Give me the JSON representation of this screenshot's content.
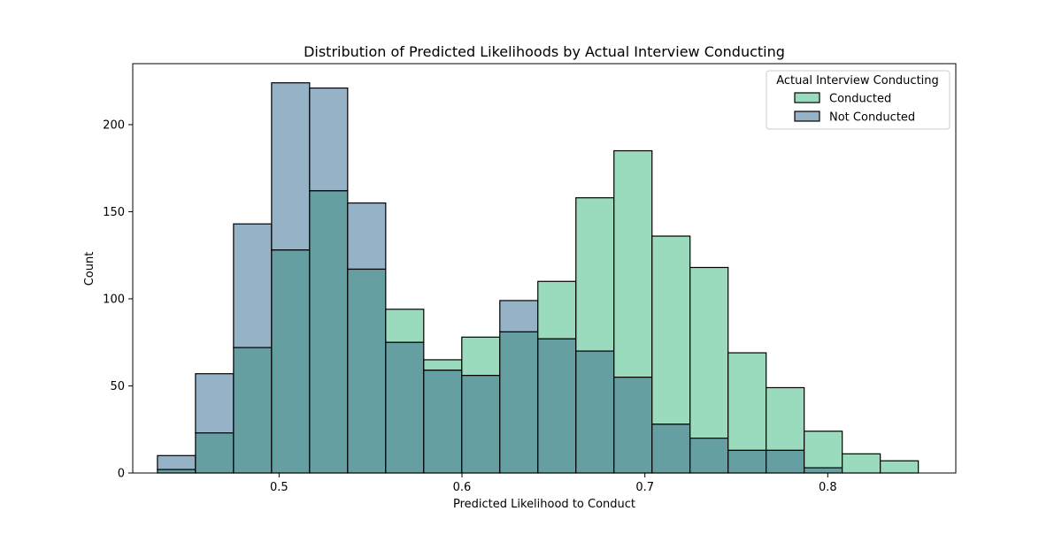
{
  "chart_data": {
    "type": "bar",
    "title": "Distribution of Predicted Likelihoods by Actual Interview Conducting",
    "xlabel": "Predicted Likelihood to Conduct",
    "ylabel": "Count",
    "xlim": [
      0.42,
      0.87
    ],
    "ylim": [
      0,
      235
    ],
    "x_ticks": [
      0.5,
      0.6,
      0.7,
      0.8
    ],
    "x_tick_labels": [
      "0.5",
      "0.6",
      "0.7",
      "0.8"
    ],
    "y_ticks": [
      0,
      50,
      100,
      150,
      200
    ],
    "y_tick_labels": [
      "0",
      "50",
      "100",
      "150",
      "200"
    ],
    "grid": false,
    "legend": {
      "title": "Actual Interview Conducting",
      "placement": "top-right"
    },
    "bin_edges": [
      0.4335,
      0.4543,
      0.4751,
      0.4959,
      0.5167,
      0.5375,
      0.5583,
      0.5791,
      0.5999,
      0.6207,
      0.6415,
      0.6623,
      0.6831,
      0.7039,
      0.7247,
      0.7455,
      0.7663,
      0.7871,
      0.8079,
      0.8287,
      0.8495
    ],
    "series": [
      {
        "name": "Not Conducted",
        "color": "#95b2c6",
        "values": [
          10,
          57,
          143,
          224,
          221,
          155,
          75,
          59,
          56,
          99,
          77,
          70,
          55,
          28,
          20,
          13,
          13,
          3,
          0,
          0
        ]
      },
      {
        "name": "Conducted",
        "color": "#9bdbbd",
        "values": [
          2,
          23,
          72,
          128,
          162,
          117,
          94,
          65,
          78,
          81,
          110,
          158,
          185,
          136,
          118,
          69,
          49,
          24,
          11,
          7
        ]
      }
    ],
    "overlap_color": "#669fa2"
  }
}
